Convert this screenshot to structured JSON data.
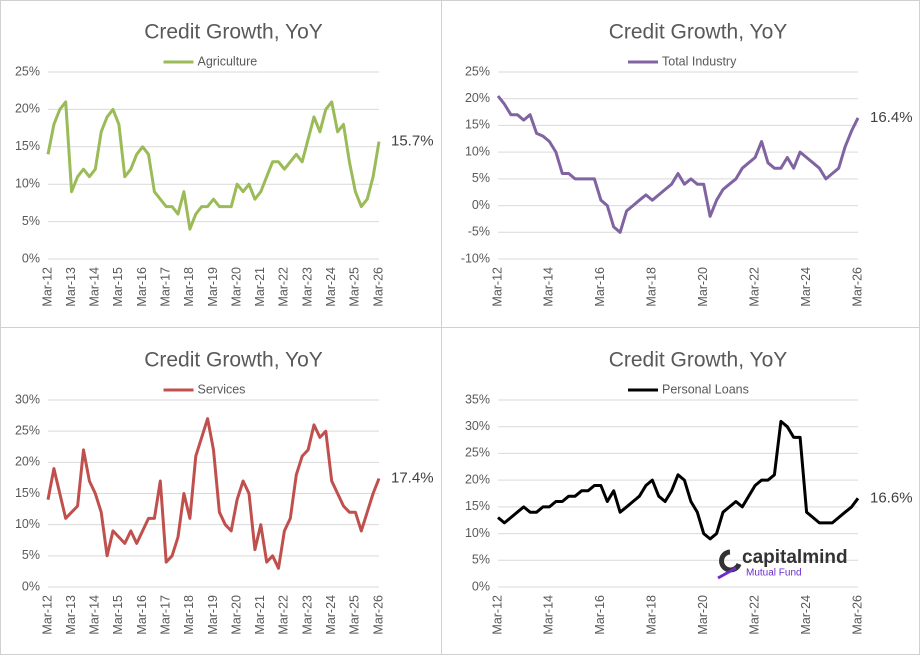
{
  "chart_data": [
    {
      "type": "line",
      "title": "Credit Growth, YoY",
      "annotation": "15.7%",
      "categories": [
        "Mar-12",
        null,
        null,
        null,
        "Mar-13",
        null,
        null,
        null,
        "Mar-14",
        null,
        null,
        null,
        "Mar-15",
        null,
        null,
        null,
        "Mar-16",
        null,
        null,
        null,
        "Mar-17",
        null,
        null,
        null,
        "Mar-18",
        null,
        null,
        null,
        "Mar-19",
        null,
        null,
        null,
        "Mar-20",
        null,
        null,
        null,
        "Mar-21",
        null,
        null,
        null,
        "Mar-22",
        null,
        null,
        null,
        "Mar-23",
        null,
        null,
        null,
        "Mar-24",
        null,
        null,
        null,
        "Mar-25",
        null,
        null,
        null,
        "Mar-26"
      ],
      "series": [
        {
          "name": "Agriculture",
          "color": "#9bbb59",
          "values": [
            14,
            18,
            20,
            21,
            9,
            11,
            12,
            11,
            12,
            17,
            19,
            20,
            18,
            11,
            12,
            14,
            15,
            14,
            9,
            8,
            7,
            7,
            6,
            9,
            4,
            6,
            7,
            7,
            8,
            7,
            7,
            7,
            10,
            9,
            10,
            8,
            9,
            11,
            13,
            13,
            12,
            13,
            14,
            13,
            16,
            19,
            17,
            20,
            21,
            17,
            18,
            13,
            9,
            7,
            8,
            11,
            15.7
          ]
        }
      ],
      "ylim": [
        0,
        25
      ],
      "yticks": [
        {
          "value": 0,
          "label": "0%"
        },
        {
          "value": 5,
          "label": "5%"
        },
        {
          "value": 10,
          "label": "10%"
        },
        {
          "value": 15,
          "label": "15%"
        },
        {
          "value": 20,
          "label": "20%"
        },
        {
          "value": 25,
          "label": "25%"
        }
      ],
      "grid": true
    },
    {
      "type": "line",
      "title": "Credit Growth, YoY",
      "annotation": "16.4%",
      "categories": [
        "Mar-12",
        null,
        null,
        null,
        null,
        null,
        null,
        null,
        "Mar-14",
        null,
        null,
        null,
        null,
        null,
        null,
        null,
        "Mar-16",
        null,
        null,
        null,
        null,
        null,
        null,
        null,
        "Mar-18",
        null,
        null,
        null,
        null,
        null,
        null,
        null,
        "Mar-20",
        null,
        null,
        null,
        null,
        null,
        null,
        null,
        "Mar-22",
        null,
        null,
        null,
        null,
        null,
        null,
        null,
        "Mar-24",
        null,
        null,
        null,
        null,
        null,
        null,
        null,
        "Mar-26"
      ],
      "series": [
        {
          "name": "Total Industry",
          "color": "#8064a2",
          "values": [
            20.5,
            19,
            17,
            17,
            16,
            17,
            13.5,
            13,
            12,
            10,
            6,
            6,
            5,
            5,
            5,
            5,
            1,
            0,
            -4,
            -5,
            -1,
            0,
            1,
            2,
            1,
            2,
            3,
            4,
            6,
            4,
            5,
            4,
            4,
            -2,
            1,
            3,
            4,
            5,
            7,
            8,
            9,
            12,
            8,
            7,
            7,
            9,
            7,
            10,
            9,
            8,
            7,
            5,
            6,
            7,
            11,
            14,
            16.4
          ]
        }
      ],
      "ylim": [
        -10,
        25
      ],
      "yticks": [
        {
          "value": -10,
          "label": "-10%"
        },
        {
          "value": -5,
          "label": "-5%"
        },
        {
          "value": 0,
          "label": "0%"
        },
        {
          "value": 5,
          "label": "5%"
        },
        {
          "value": 10,
          "label": "10%"
        },
        {
          "value": 15,
          "label": "15%"
        },
        {
          "value": 20,
          "label": "20%"
        },
        {
          "value": 25,
          "label": "25%"
        }
      ],
      "grid": true
    },
    {
      "type": "line",
      "title": "Credit Growth, YoY",
      "annotation": "17.4%",
      "categories": [
        "Mar-12",
        null,
        null,
        null,
        "Mar-13",
        null,
        null,
        null,
        "Mar-14",
        null,
        null,
        null,
        "Mar-15",
        null,
        null,
        null,
        "Mar-16",
        null,
        null,
        null,
        "Mar-17",
        null,
        null,
        null,
        "Mar-18",
        null,
        null,
        null,
        "Mar-19",
        null,
        null,
        null,
        "Mar-20",
        null,
        null,
        null,
        "Mar-21",
        null,
        null,
        null,
        "Mar-22",
        null,
        null,
        null,
        "Mar-23",
        null,
        null,
        null,
        "Mar-24",
        null,
        null,
        null,
        "Mar-25",
        null,
        null,
        null,
        "Mar-26"
      ],
      "series": [
        {
          "name": "Services",
          "color": "#c0504d",
          "values": [
            14,
            19,
            15,
            11,
            12,
            13,
            22,
            17,
            15,
            12,
            5,
            9,
            8,
            7,
            9,
            7,
            9,
            11,
            11,
            17,
            4,
            5,
            8,
            15,
            11,
            21,
            24,
            27,
            22,
            12,
            10,
            9,
            14,
            17,
            15,
            6,
            10,
            4,
            5,
            3,
            9,
            11,
            18,
            21,
            22,
            26,
            24,
            25,
            17,
            15,
            13,
            12,
            12,
            9,
            12,
            15,
            17.4
          ]
        }
      ],
      "ylim": [
        0,
        30
      ],
      "yticks": [
        {
          "value": 0,
          "label": "0%"
        },
        {
          "value": 5,
          "label": "5%"
        },
        {
          "value": 10,
          "label": "10%"
        },
        {
          "value": 15,
          "label": "15%"
        },
        {
          "value": 20,
          "label": "20%"
        },
        {
          "value": 25,
          "label": "25%"
        },
        {
          "value": 30,
          "label": "30%"
        }
      ],
      "grid": true
    },
    {
      "type": "line",
      "title": "Credit Growth, YoY",
      "annotation": "16.6%",
      "categories": [
        "Mar-12",
        null,
        null,
        null,
        null,
        null,
        null,
        null,
        "Mar-14",
        null,
        null,
        null,
        null,
        null,
        null,
        null,
        "Mar-16",
        null,
        null,
        null,
        null,
        null,
        null,
        null,
        "Mar-18",
        null,
        null,
        null,
        null,
        null,
        null,
        null,
        "Mar-20",
        null,
        null,
        null,
        null,
        null,
        null,
        null,
        "Mar-22",
        null,
        null,
        null,
        null,
        null,
        null,
        null,
        "Mar-24",
        null,
        null,
        null,
        null,
        null,
        null,
        null,
        "Mar-26"
      ],
      "series": [
        {
          "name": "Personal Loans",
          "color": "#000000",
          "values": [
            13,
            12,
            13,
            14,
            15,
            14,
            14,
            15,
            15,
            16,
            16,
            17,
            17,
            18,
            18,
            19,
            19,
            16,
            18,
            14,
            15,
            16,
            17,
            19,
            20,
            17,
            16,
            18,
            21,
            20,
            16,
            14,
            10,
            9,
            10,
            14,
            15,
            16,
            15,
            17,
            19,
            20,
            20,
            21,
            31,
            30,
            28,
            28,
            14,
            13,
            12,
            12,
            12,
            13,
            14,
            15,
            16.6
          ]
        }
      ],
      "ylim": [
        0,
        35
      ],
      "yticks": [
        {
          "value": 0,
          "label": "0%"
        },
        {
          "value": 5,
          "label": "5%"
        },
        {
          "value": 10,
          "label": "10%"
        },
        {
          "value": 15,
          "label": "15%"
        },
        {
          "value": 20,
          "label": "20%"
        },
        {
          "value": 25,
          "label": "25%"
        },
        {
          "value": 30,
          "label": "30%"
        },
        {
          "value": 35,
          "label": "35%"
        }
      ],
      "grid": true
    }
  ],
  "watermark": {
    "brand": "capitalmind",
    "sub": "Mutual Fund"
  }
}
